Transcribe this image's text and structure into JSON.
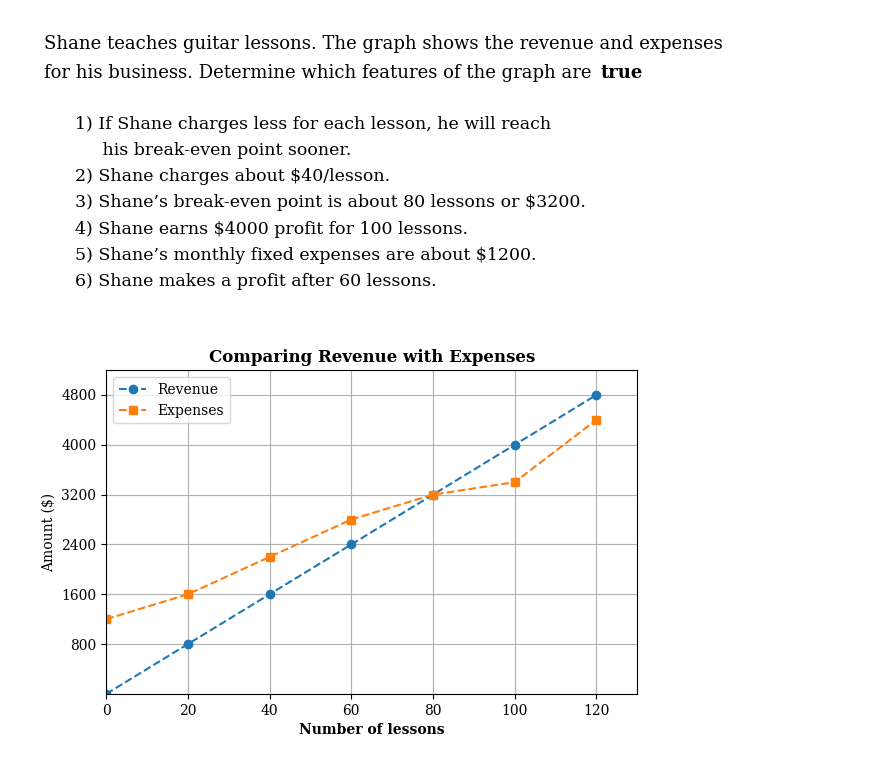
{
  "chart_data": {
    "type": "line",
    "title": "Comparing Revenue with Expenses",
    "xlabel": "Number of lessons",
    "ylabel": "Amount ($)",
    "x": [
      0,
      20,
      40,
      60,
      80,
      100,
      120
    ],
    "series": [
      {
        "name": "Revenue",
        "values": [
          0,
          800,
          1600,
          2400,
          3200,
          4000,
          4800
        ],
        "marker": "circle",
        "line_style": "dashed"
      },
      {
        "name": "Expenses",
        "values": [
          1200,
          1600,
          2200,
          2800,
          3200,
          3400,
          4400
        ],
        "marker": "square",
        "line_style": "dashed"
      }
    ],
    "xlim": [
      0,
      130
    ],
    "ylim": [
      0,
      5200
    ],
    "xticks": [
      0,
      20,
      40,
      60,
      80,
      100,
      120
    ],
    "yticks": [
      800,
      1600,
      2400,
      3200,
      4000,
      4800
    ],
    "grid": true,
    "legend": "upper left",
    "annotations": [
      "Shane teaches guitar lessons. The graph shows the revenue and expenses",
      "for his business. Determine which features of the graph are ",
      "true",
      "1) If Shane charges less for each lesson, he will reach",
      "     his break-even point sooner.",
      "2) Shane charges about $40/lesson.",
      "3) Shane’s break-even point is about 80 lessons or $3200.",
      "4) Shane earns $4000 profit for 100 lessons.",
      "5) Shane’s monthly fixed expenses are about $1200.",
      "6) Shane makes a profit after 60 lessons."
    ]
  }
}
